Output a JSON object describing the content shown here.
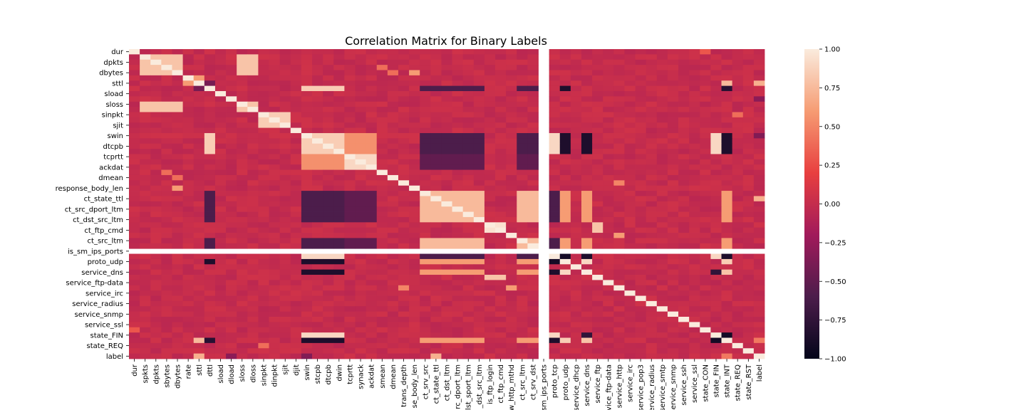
{
  "chart_data": {
    "type": "heatmap",
    "title": "Correlation Matrix for Binary Labels",
    "variables": [
      "dur",
      "spkts",
      "dpkts",
      "sbytes",
      "dbytes",
      "rate",
      "sttl",
      "dttl",
      "sload",
      "dload",
      "sloss",
      "dloss",
      "sinpkt",
      "dinpkt",
      "sjit",
      "djit",
      "swin",
      "stcpb",
      "dtcpb",
      "dwin",
      "tcprtt",
      "synack",
      "ackdat",
      "smean",
      "dmean",
      "trans_depth",
      "response_body_len",
      "ct_srv_src",
      "ct_state_ttl",
      "ct_dst_ltm",
      "ct_src_dport_ltm",
      "ct_dst_sport_ltm",
      "ct_dst_src_ltm",
      "is_ftp_login",
      "ct_ftp_cmd",
      "ct_flw_http_mthd",
      "ct_src_ltm",
      "ct_srv_dst",
      "is_sm_ips_ports",
      "proto_tcp",
      "proto_udp",
      "service_dhcp",
      "service_dns",
      "service_ftp",
      "service_ftp-data",
      "service_http",
      "service_irc",
      "service_pop3",
      "service_radius",
      "service_smtp",
      "service_snmp",
      "service_ssh",
      "service_ssl",
      "state_CON",
      "state_FIN",
      "state_INT",
      "state_REQ",
      "state_RST",
      "label"
    ],
    "x_tick_labels": [
      "dur",
      "spkts",
      "dpkts",
      "sbytes",
      "dbytes",
      "rate",
      "sttl",
      "dttl",
      "sload",
      "dload",
      "sloss",
      "dloss",
      "sinpkt",
      "dinpkt",
      "sjit",
      "djit",
      "swin",
      "stcpb",
      "dtcpb",
      "dwin",
      "tcprtt",
      "synack",
      "ackdat",
      "smean",
      "dmean",
      "trans_depth",
      "se_body_len",
      "ct_srv_src",
      "ct_state_ttl",
      "ct_dst_ltm",
      "rc_dport_ltm",
      "lst_sport_ltm",
      "_dst_src_ltm",
      "is_ftp_login",
      "ct_ftp_cmd",
      "w_http_mthd",
      "ct_src_ltm",
      "ct_srv_dst",
      "sm_ips_ports",
      "proto_tcp",
      "proto_udp",
      "service_dhcp",
      "service_dns",
      "service_ftp",
      "vice_ftp-data",
      "service_http",
      "service_irc",
      "service_pop3",
      "service_radius",
      "service_smtp",
      "service_snmp",
      "service_ssh",
      "service_ssl",
      "state_CON",
      "state_FIN",
      "state_INT",
      "state_REQ",
      "state_RST",
      "label"
    ],
    "y_tick_labels": [
      "dur",
      "dpkts",
      "dbytes",
      "sttl",
      "sload",
      "sloss",
      "sinpkt",
      "sjit",
      "swin",
      "dtcpb",
      "tcprtt",
      "ackdat",
      "dmean",
      "response_body_len",
      "ct_state_ttl",
      "ct_src_dport_ltm",
      "ct_dst_src_ltm",
      "ct_ftp_cmd",
      "ct_src_ltm",
      "is_sm_ips_ports",
      "proto_udp",
      "service_dns",
      "service_ftp-data",
      "service_irc",
      "service_radius",
      "service_snmp",
      "service_ssl",
      "state_FIN",
      "state_REQ",
      "label"
    ],
    "nan_variable": "is_sm_ips_ports",
    "values_note": "",
    "colorbar": {
      "min": -1.0,
      "max": 1.0,
      "ticks": [
        1.0,
        0.75,
        0.5,
        0.25,
        0.0,
        -0.25,
        -0.5,
        -0.75,
        -1.0
      ],
      "tick_labels": [
        "1.00",
        "0.75",
        "0.50",
        "0.25",
        "0.00",
        "−0.25",
        "−0.50",
        "−0.75",
        "−1.00"
      ],
      "colormap": "rocket",
      "stops": [
        "#03051a",
        "#4c1d4b",
        "#a11a5b",
        "#e83f3f",
        "#f69c73",
        "#faebdd"
      ]
    },
    "xlabel": "",
    "ylabel": ""
  }
}
